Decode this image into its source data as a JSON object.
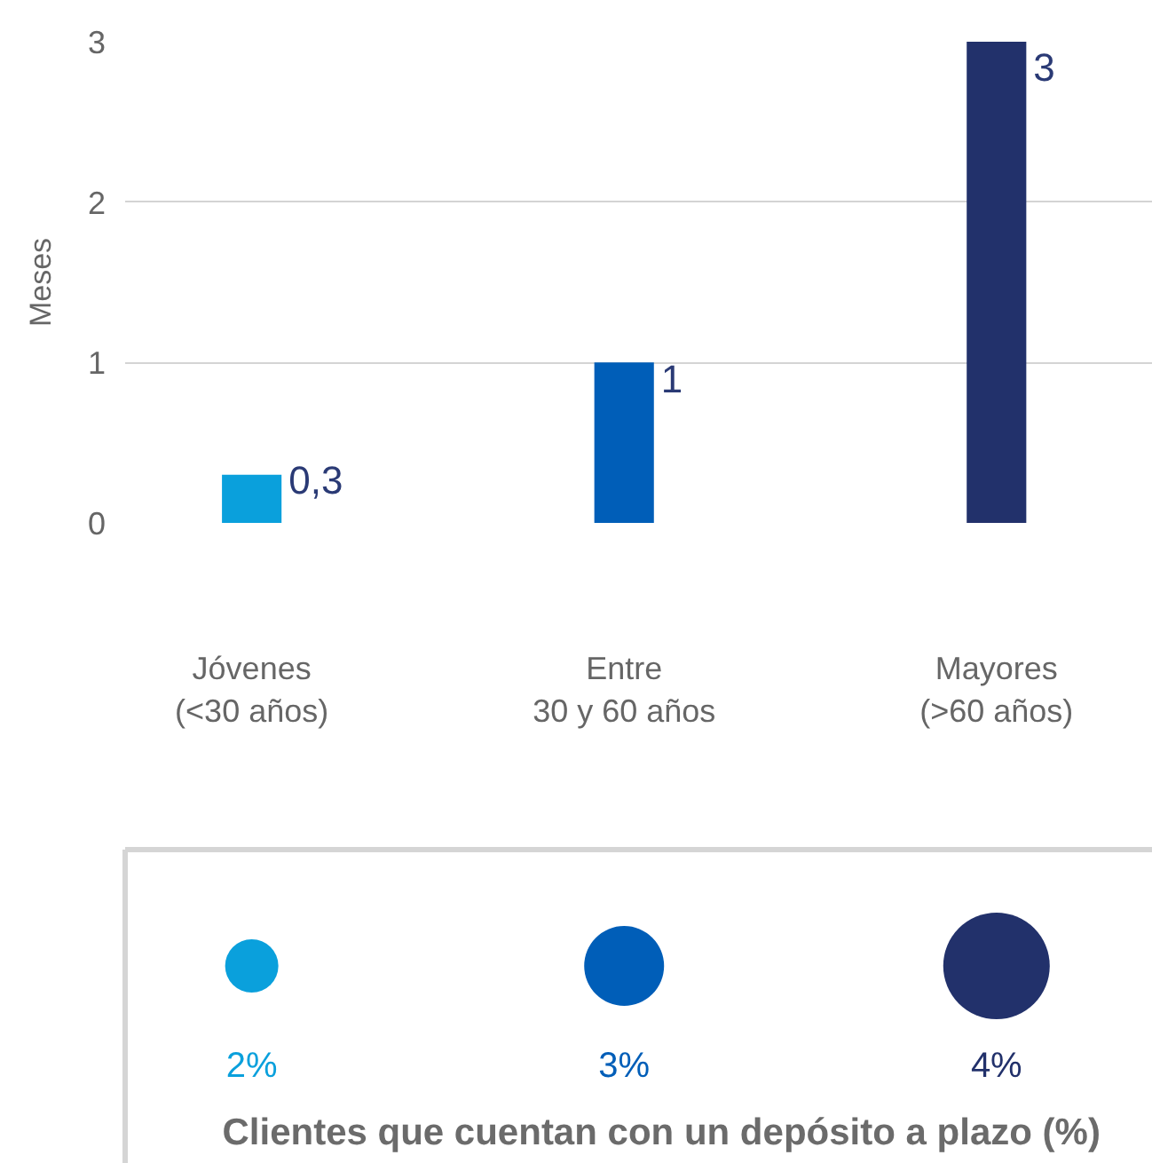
{
  "chart_data": [
    {
      "type": "bar",
      "categories": [
        "Jóvenes\n(<30 años)",
        "Entre\n30 y 60 años",
        "Mayores\n(>60 años)"
      ],
      "values": [
        0.3,
        1,
        3
      ],
      "colors": [
        "#0aa0dc",
        "#005eb8",
        "#22316b"
      ],
      "value_labels": [
        "0,3",
        "1",
        "3"
      ],
      "ylabel": "Meses",
      "ylim": [
        0,
        3
      ],
      "yticks": [
        0,
        1,
        2,
        3
      ],
      "grid": "y"
    },
    {
      "type": "other",
      "title": "Clientes que cuentan con un depósito a plazo (%)",
      "values": [
        2,
        3,
        4
      ],
      "value_labels": [
        "2%",
        "3%",
        "4%"
      ],
      "colors": [
        "#0aa0dc",
        "#005eb8",
        "#22316b"
      ]
    }
  ]
}
